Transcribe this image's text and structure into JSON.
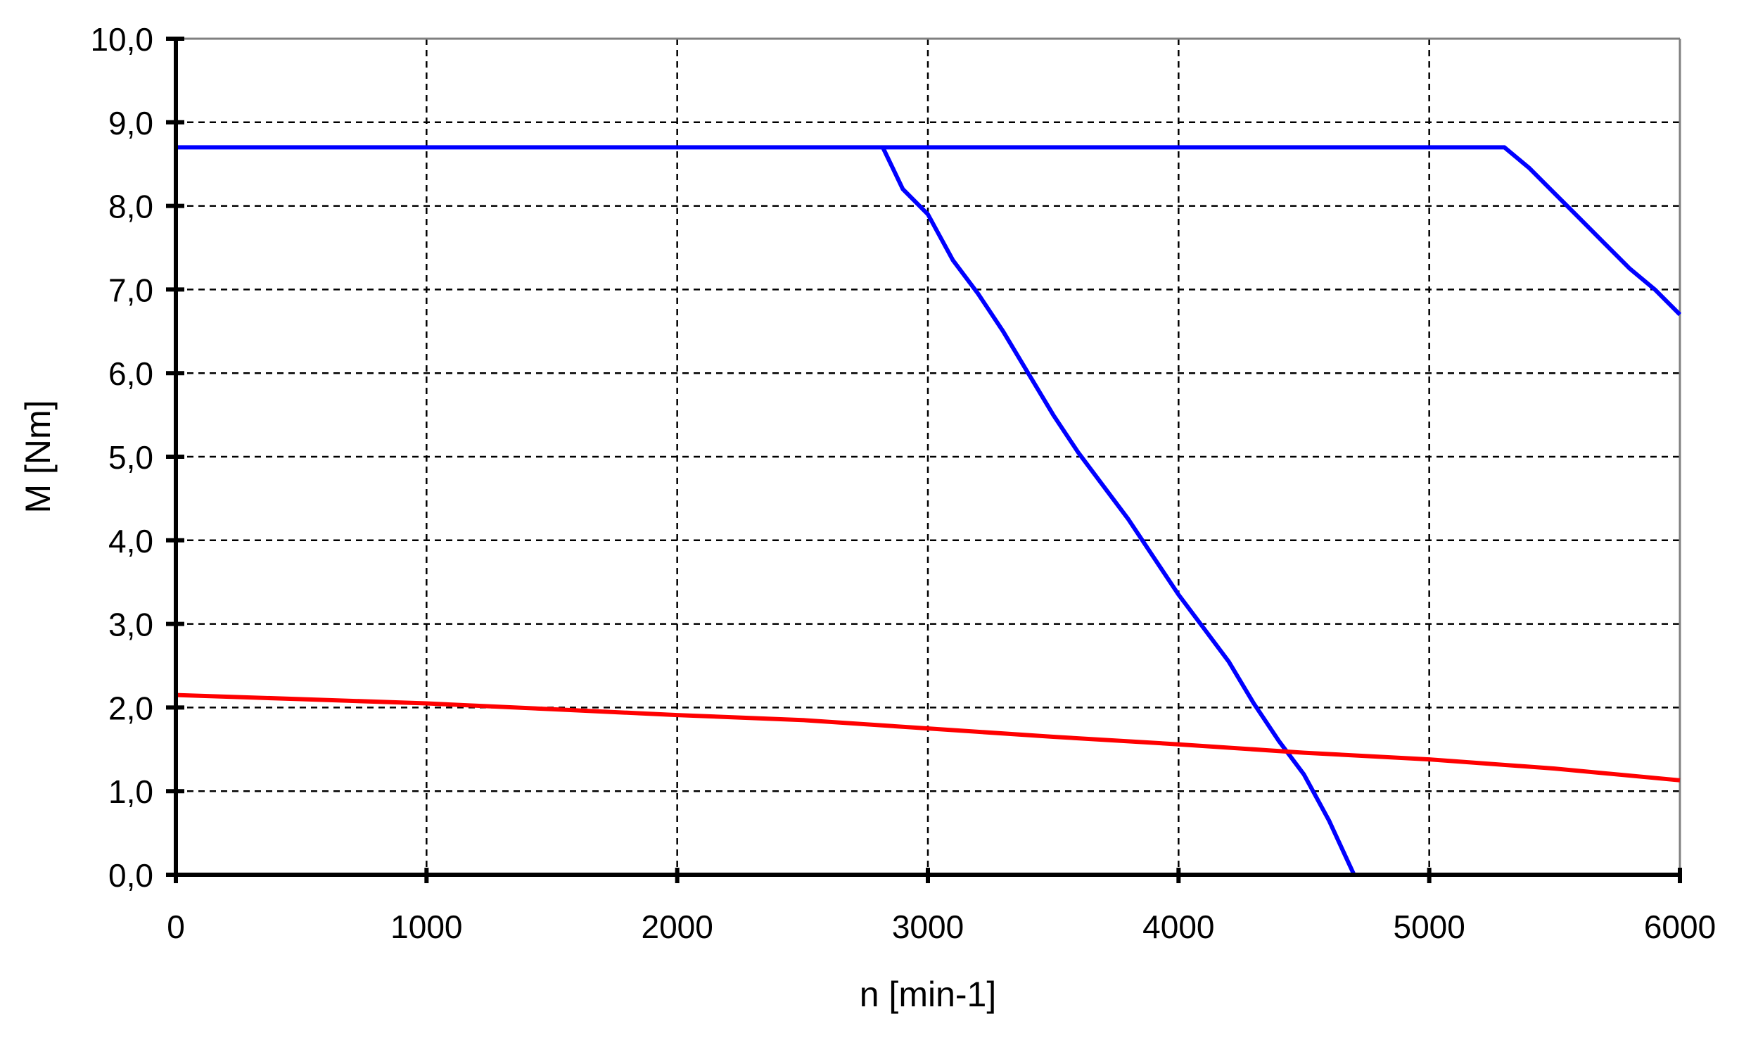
{
  "chart_data": {
    "type": "line",
    "title": "",
    "xlabel": "n [min-1]",
    "ylabel": "M [Nm]",
    "xlim": [
      0,
      6000
    ],
    "ylim": [
      0,
      10
    ],
    "x_ticks": [
      "0",
      "1000",
      "2000",
      "3000",
      "4000",
      "5000",
      "6000"
    ],
    "y_ticks": [
      "0,0",
      "1,0",
      "2,0",
      "3,0",
      "4,0",
      "5,0",
      "6,0",
      "7,0",
      "8,0",
      "9,0",
      "10,0"
    ],
    "grid": true,
    "legend": "none",
    "series": [
      {
        "color": "#0000ff",
        "x": [
          0,
          5300,
          5400,
          5500,
          5600,
          5700,
          5800,
          5900,
          6000
        ],
        "y": [
          8.7,
          8.7,
          8.45,
          8.15,
          7.85,
          7.55,
          7.25,
          7.0,
          6.7
        ]
      },
      {
        "color": "#0000ff",
        "x": [
          2820,
          2900,
          3000,
          3100,
          3200,
          3300,
          3400,
          3500,
          3600,
          3700,
          3800,
          3900,
          4000,
          4100,
          4200,
          4300,
          4400,
          4500,
          4600,
          4700
        ],
        "y": [
          8.7,
          8.2,
          7.9,
          7.35,
          6.95,
          6.5,
          6.0,
          5.5,
          5.05,
          4.65,
          4.25,
          3.8,
          3.35,
          2.95,
          2.55,
          2.05,
          1.6,
          1.2,
          0.65,
          0.0
        ]
      },
      {
        "color": "#ff0000",
        "x": [
          0,
          500,
          1000,
          1500,
          2000,
          2500,
          3000,
          3500,
          4000,
          4500,
          5000,
          5500,
          6000
        ],
        "y": [
          2.15,
          2.1,
          2.05,
          1.98,
          1.91,
          1.85,
          1.75,
          1.65,
          1.56,
          1.46,
          1.38,
          1.27,
          1.13
        ]
      }
    ]
  }
}
